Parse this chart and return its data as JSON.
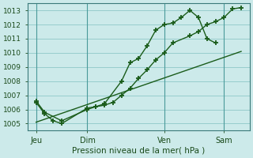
{
  "title": "Pression niveau de la mer( hPa )",
  "bg_color": "#cceaea",
  "grid_color": "#8ec8c8",
  "line_color": "#1a5c1a",
  "xtick_labels": [
    "Jeu",
    "Dim",
    "Ven",
    "Sam"
  ],
  "xtick_positions": [
    0.5,
    3.5,
    8.0,
    11.5
  ],
  "yticks": [
    1005,
    1006,
    1007,
    1008,
    1009,
    1010,
    1011,
    1012,
    1013
  ],
  "ymin": 1004.5,
  "ymax": 1013.5,
  "xmin": 0,
  "xmax": 13.0,
  "vlines": [
    0.5,
    3.5,
    8.0,
    11.5
  ],
  "line1_x": [
    0.5,
    1.0,
    1.5,
    2.0,
    3.5,
    4.0,
    4.5,
    5.5,
    6.0,
    6.5,
    7.0,
    7.5,
    8.0,
    8.5,
    9.0,
    9.5,
    10.0,
    10.5,
    11.0
  ],
  "line1_y": [
    1006.5,
    1005.7,
    1005.2,
    1005.0,
    1006.1,
    1006.2,
    1006.4,
    1008.0,
    1009.3,
    1009.6,
    1010.5,
    1011.6,
    1012.0,
    1012.1,
    1012.5,
    1013.0,
    1012.5,
    1011.0,
    1010.7
  ],
  "line2_x": [
    0.5,
    1.0,
    2.0,
    3.5,
    4.0,
    4.5,
    5.0,
    5.5,
    6.0,
    6.5,
    7.0,
    7.5,
    8.0,
    8.5,
    9.5,
    10.0,
    10.5,
    11.0,
    11.5,
    12.0,
    12.5
  ],
  "line2_y": [
    1006.6,
    1005.8,
    1005.2,
    1006.0,
    1006.2,
    1006.3,
    1006.5,
    1007.0,
    1007.5,
    1008.2,
    1008.8,
    1009.5,
    1010.0,
    1010.7,
    1011.2,
    1011.5,
    1012.0,
    1012.2,
    1012.5,
    1013.1,
    1013.2
  ],
  "line3_x": [
    0.5,
    12.5
  ],
  "line3_y": [
    1005.1,
    1010.1
  ]
}
